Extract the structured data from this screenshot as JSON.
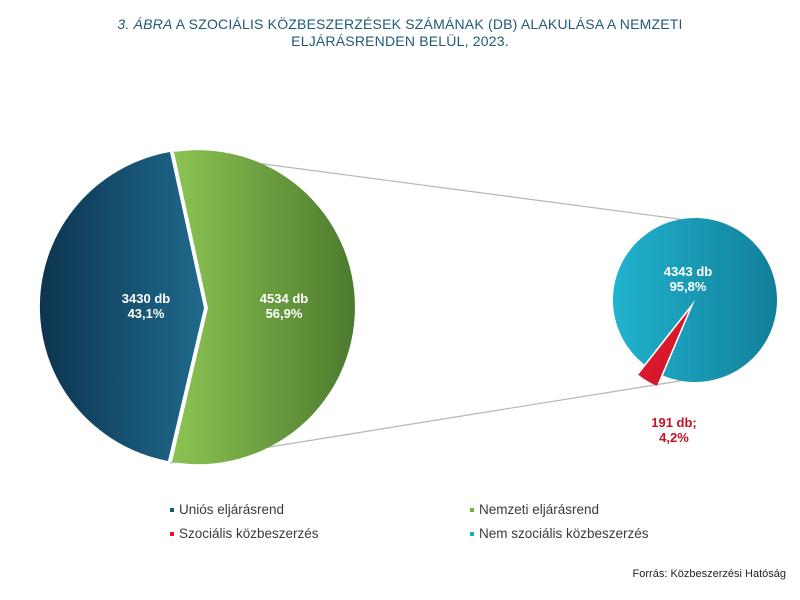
{
  "title": {
    "lead": "3. ÁBRA",
    "line1_rest": " A SZOCIÁLIS KÖZBESZERZÉSEK SZÁMÁNAK (DB) ALAKULÁSA A NEMZETI",
    "line2": "ELJÁRÁSRENDEN BELÜL, 2023."
  },
  "source": "Forrás: Közbeszerzési Hatóság",
  "chart_data": [
    {
      "type": "pie",
      "slices": [
        {
          "name": "Uniós eljárásrend",
          "value": 3430,
          "label_line1": "3430 db",
          "label_line2": "43,1%",
          "color": "#1a5a78"
        },
        {
          "name": "Nemzeti eljárásrend",
          "value": 4534,
          "label_line1": "4534 db",
          "label_line2": "56,9%",
          "color": "#7cb144"
        }
      ]
    },
    {
      "type": "pie",
      "slices": [
        {
          "name": "Nem szociális közbeszerzés",
          "value": 4343,
          "label_line1": "4343 db",
          "label_line2": "95,8%",
          "color": "#1ea6c2"
        },
        {
          "name": "Szociális közbeszerzés",
          "value": 191,
          "label_line1": "191 db;",
          "label_line2": "4,2%",
          "color": "#e0192b"
        }
      ]
    }
  ],
  "legend": [
    {
      "label": "Uniós eljárásrend",
      "color": "#1a5a78"
    },
    {
      "label": "Nemzeti eljárásrend",
      "color": "#7cb144"
    },
    {
      "label": "Szociális közbeszerzés",
      "color": "#e0192b"
    },
    {
      "label": "Nem szociális közbeszerzés",
      "color": "#1ea6c2"
    }
  ]
}
